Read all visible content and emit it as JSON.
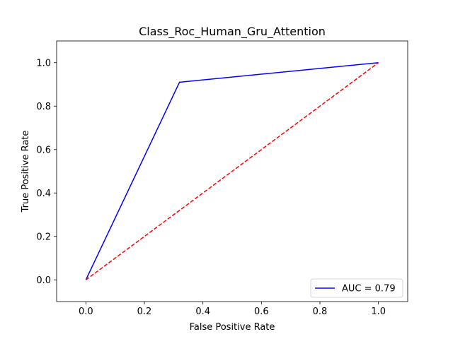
{
  "chart_data": {
    "type": "line",
    "title": "Class_Roc_Human_Gru_Attention",
    "xlabel": "False Positive Rate",
    "ylabel": "True Positive Rate",
    "xlim": [
      -0.1,
      1.1
    ],
    "ylim": [
      -0.1,
      1.1
    ],
    "xticks": [
      0.0,
      0.2,
      0.4,
      0.6,
      0.8,
      1.0
    ],
    "yticks": [
      0.0,
      0.2,
      0.4,
      0.6,
      0.8,
      1.0
    ],
    "xtick_labels": [
      "0.0",
      "0.2",
      "0.4",
      "0.6",
      "0.8",
      "1.0"
    ],
    "ytick_labels": [
      "0.0",
      "0.2",
      "0.4",
      "0.6",
      "0.8",
      "1.0"
    ],
    "grid": false,
    "legend_position": "bottom-right",
    "series": [
      {
        "name": "AUC = 0.79",
        "color": "#0000ff",
        "style": "solid",
        "x": [
          0.0,
          0.32,
          1.0
        ],
        "y": [
          0.0,
          0.91,
          1.0
        ],
        "in_legend": true
      },
      {
        "color": "#ff0000",
        "style": "dashed",
        "x": [
          0.0,
          1.0
        ],
        "y": [
          0.0,
          1.0
        ],
        "in_legend": false
      }
    ]
  }
}
